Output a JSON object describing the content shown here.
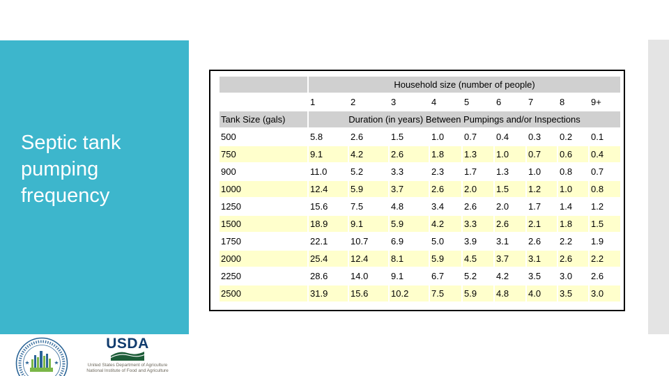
{
  "slide": {
    "title": "Septic tank pumping frequency"
  },
  "table": {
    "col_group_header": "Household size (number of people)",
    "household_sizes": [
      "1",
      "2",
      "3",
      "4",
      "5",
      "6",
      "7",
      "8",
      "9+"
    ],
    "row_header": "Tank Size (gals)",
    "duration_header": "Duration (in years) Between Pumpings and/or Inspections",
    "rows": [
      {
        "tank_size": "500",
        "values": [
          "5.8",
          "2.6",
          "1.5",
          "1.0",
          "0.7",
          "0.4",
          "0.3",
          "0.2",
          "0.1"
        ]
      },
      {
        "tank_size": "750",
        "values": [
          "9.1",
          "4.2",
          "2.6",
          "1.8",
          "1.3",
          "1.0",
          "0.7",
          "0.6",
          "0.4"
        ]
      },
      {
        "tank_size": "900",
        "values": [
          "11.0",
          "5.2",
          "3.3",
          "2.3",
          "1.7",
          "1.3",
          "1.0",
          "0.8",
          "0.7"
        ]
      },
      {
        "tank_size": "1000",
        "values": [
          "12.4",
          "5.9",
          "3.7",
          "2.6",
          "2.0",
          "1.5",
          "1.2",
          "1.0",
          "0.8"
        ]
      },
      {
        "tank_size": "1250",
        "values": [
          "15.6",
          "7.5",
          "4.8",
          "3.4",
          "2.6",
          "2.0",
          "1.7",
          "1.4",
          "1.2"
        ]
      },
      {
        "tank_size": "1500",
        "values": [
          "18.9",
          "9.1",
          "5.9",
          "4.2",
          "3.3",
          "2.6",
          "2.1",
          "1.8",
          "1.5"
        ]
      },
      {
        "tank_size": "1750",
        "values": [
          "22.1",
          "10.7",
          "6.9",
          "5.0",
          "3.9",
          "3.1",
          "2.6",
          "2.2",
          "1.9"
        ]
      },
      {
        "tank_size": "2000",
        "values": [
          "25.4",
          "12.4",
          "8.1",
          "5.9",
          "4.5",
          "3.7",
          "3.1",
          "2.6",
          "2.2"
        ]
      },
      {
        "tank_size": "2250",
        "values": [
          "28.6",
          "14.0",
          "9.1",
          "6.7",
          "5.2",
          "4.2",
          "3.5",
          "3.0",
          "2.6"
        ]
      },
      {
        "tank_size": "2500",
        "values": [
          "31.9",
          "15.6",
          "10.2",
          "7.5",
          "5.9",
          "4.8",
          "4.0",
          "3.5",
          "3.0"
        ]
      }
    ]
  },
  "footer": {
    "usda_wordmark": "USDA",
    "usda_line1": "United States Department of Agriculture",
    "usda_line2": "National Institute of Food and Agriculture"
  },
  "colors": {
    "teal_panel": "#3db6cc",
    "row_highlight": "#ffffcc",
    "header_gray": "#d0d0d0",
    "right_bar": "#e4e4e4",
    "usda_navy": "#123c6e",
    "usda_green": "#1d5d38"
  }
}
